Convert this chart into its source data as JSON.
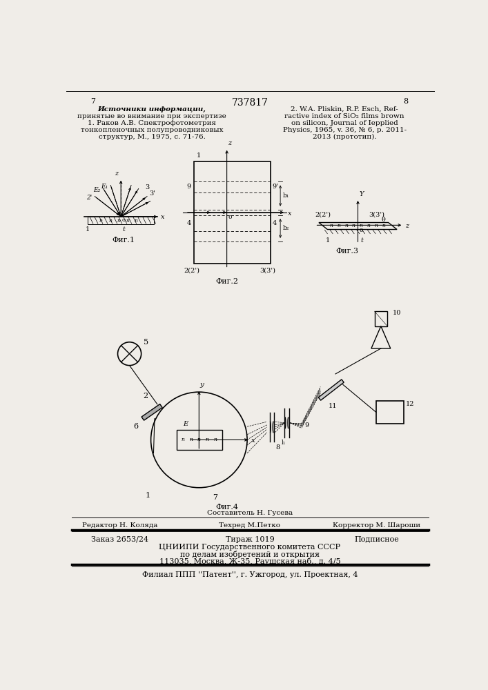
{
  "bg_color": "#f0ede8",
  "page_num_left": "7",
  "page_num_center": "737817",
  "page_num_right": "8",
  "header_refs_left": [
    "Источники информации,",
    "принятые во внимание при экспертизе",
    "1. Раков А.В. Спектрофотометрия",
    "тонкопленочных полупроводниковых",
    "структур, М., 1975, с. 71-76."
  ],
  "header_refs_right": [
    "2. W.A. Pliskin, R.P. Esch, Ref-",
    "ractive index of SiO₂ films brown",
    "on silicon, Journal of Iepplied",
    "Physics, 1965, v. 36, № 6, p. 2011-",
    "2013 (прототип)."
  ],
  "footer_line1_left": "Редактор Н. Коляда",
  "footer_line1_center": "Техред М.Петко",
  "footer_line1_right": "Корректор М. Шароши",
  "footer_line2_left": "Заказ 2653/24",
  "footer_line2_center": "Тираж 1019",
  "footer_line2_right": "Подписное",
  "footer_line3": "ЦНИИПИ Государственного комитета СССР",
  "footer_line4": "по делам изобретений и открытия",
  "footer_line5": "113035, Москва, Ж-35, Раушская наб., д. 4/5",
  "footer_line6": "Филиал ППП ''Патент'', г. Ужгород, ул. Проектная, 4",
  "fig1_caption": "Фиг.1",
  "fig2_caption": "Фиг.2",
  "fig3_caption": "Фиг.3",
  "fig4_caption": "Фиг.4",
  "sestavitel_label": "Составитель Н. Гусева"
}
